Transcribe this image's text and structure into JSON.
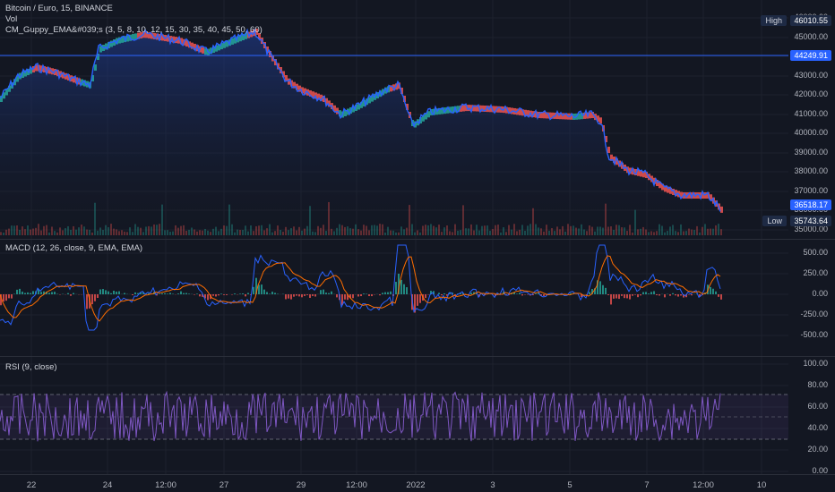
{
  "price_pane": {
    "legend_symbol": "Bitcoin / Euro, 15, BINANCE",
    "legend_vol": "Vol",
    "legend_guppy": "CM_Guppy_EMA&#039;s (3, 5, 8, 10, 12, 15, 30, 35, 40, 45, 50, 60)",
    "y_ticks": [
      "46000.00",
      "45000.00",
      "44000.00",
      "43000.00",
      "42000.00",
      "41000.00",
      "40000.00",
      "39000.00",
      "38000.00",
      "37000.00",
      "36000.00",
      "35000.00"
    ],
    "high_tag": "High",
    "high_value": "46010.55",
    "line_value": "44249.91",
    "last_value": "36518.17",
    "low_tag": "Low",
    "low_value": "35743.64",
    "colors": {
      "area_top": "#1f3a8a",
      "line": "#2962ff",
      "ema_up": "#26a69a",
      "ema_down": "#ef5350",
      "price_line": "#2962ff"
    }
  },
  "macd_pane": {
    "legend": "MACD (12, 26, close, 9, EMA, EMA)",
    "y_ticks": [
      "500.00",
      "250.00",
      "0.00",
      "-250.00",
      "-500.00"
    ],
    "colors": {
      "macd": "#2962ff",
      "signal": "#ff6d00",
      "hist_pos": "#26a69a",
      "hist_neg": "#ef5350"
    }
  },
  "rsi_pane": {
    "legend": "RSI (9, close)",
    "y_ticks": [
      "100.00",
      "80.00",
      "60.00",
      "40.00",
      "20.00",
      "0.00"
    ],
    "colors": {
      "rsi": "#7e57c2",
      "band": "#7e57c21a"
    }
  },
  "x_axis": {
    "labels": [
      "22",
      "24",
      "12:00",
      "27",
      "29",
      "12:00",
      "2022",
      "3",
      "5",
      "7",
      "12:00",
      "10"
    ]
  }
}
